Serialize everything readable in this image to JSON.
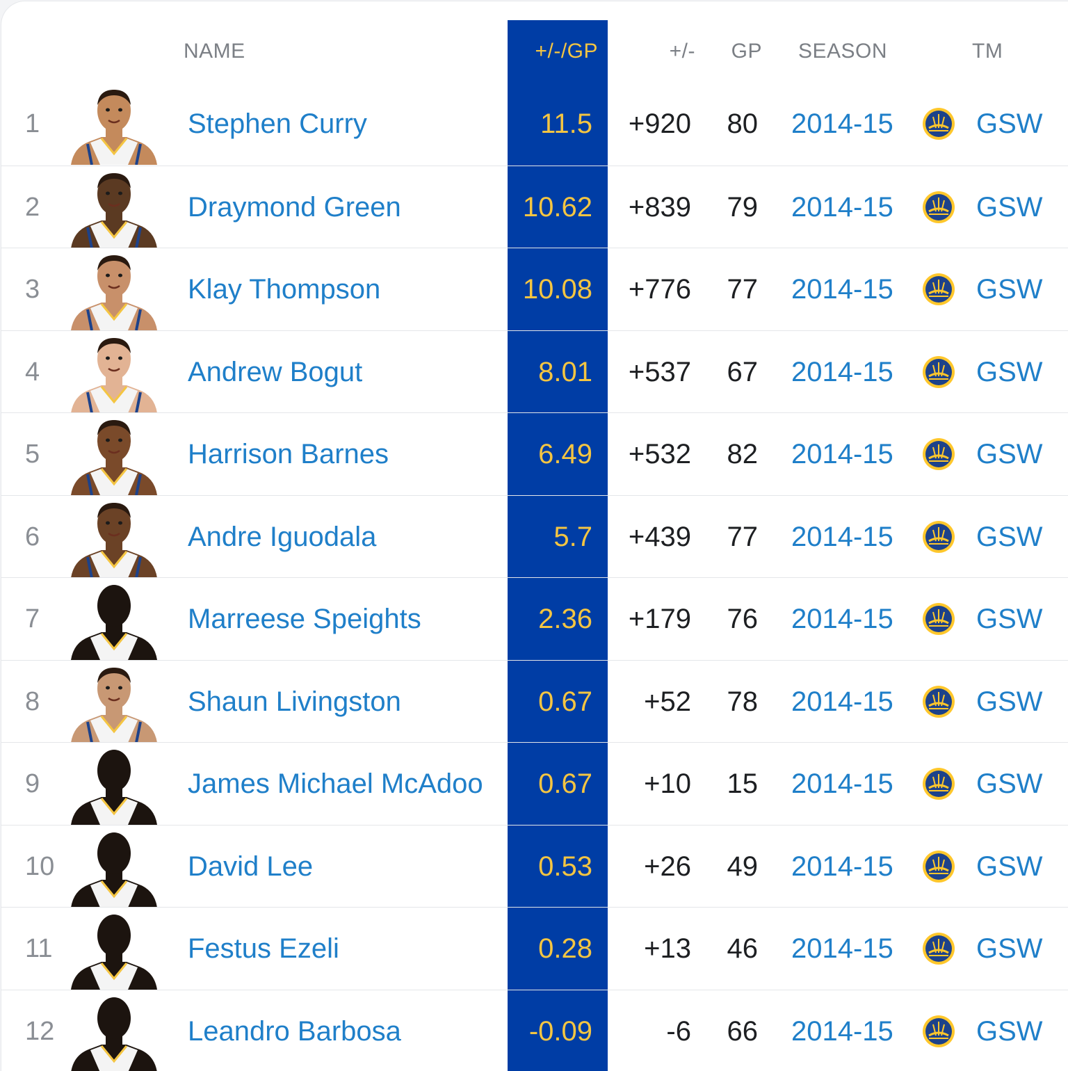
{
  "colors": {
    "stat_column_bg": "#003da5",
    "stat_text": "#f4c542",
    "link": "#1f7fc9",
    "header_text": "#7b7f85",
    "row_divider": "#e4e6e9"
  },
  "table": {
    "columns": {
      "name": "NAME",
      "plus_minus_per_gp": "+/-/GP",
      "plus_minus": "+/-",
      "gp": "GP",
      "season": "SEASON",
      "team": "TM"
    },
    "rows": [
      {
        "rank": "1",
        "name": "Stephen Curry",
        "avatar": "player-headshot",
        "pm_gp": "11.5",
        "pm": "+920",
        "gp": "80",
        "season": "2014-15",
        "team": "GSW",
        "team_logo": "warriors-logo-icon"
      },
      {
        "rank": "2",
        "name": "Draymond Green",
        "avatar": "player-headshot",
        "pm_gp": "10.62",
        "pm": "+839",
        "gp": "79",
        "season": "2014-15",
        "team": "GSW",
        "team_logo": "warriors-logo-icon"
      },
      {
        "rank": "3",
        "name": "Klay Thompson",
        "avatar": "player-headshot",
        "pm_gp": "10.08",
        "pm": "+776",
        "gp": "77",
        "season": "2014-15",
        "team": "GSW",
        "team_logo": "warriors-logo-icon"
      },
      {
        "rank": "4",
        "name": "Andrew Bogut",
        "avatar": "player-headshot",
        "pm_gp": "8.01",
        "pm": "+537",
        "gp": "67",
        "season": "2014-15",
        "team": "GSW",
        "team_logo": "warriors-logo-icon"
      },
      {
        "rank": "5",
        "name": "Harrison Barnes",
        "avatar": "player-headshot",
        "pm_gp": "6.49",
        "pm": "+532",
        "gp": "82",
        "season": "2014-15",
        "team": "GSW",
        "team_logo": "warriors-logo-icon"
      },
      {
        "rank": "6",
        "name": "Andre Iguodala",
        "avatar": "player-headshot",
        "pm_gp": "5.7",
        "pm": "+439",
        "gp": "77",
        "season": "2014-15",
        "team": "GSW",
        "team_logo": "warriors-logo-icon"
      },
      {
        "rank": "7",
        "name": "Marreese Speights",
        "avatar": "player-silhouette",
        "pm_gp": "2.36",
        "pm": "+179",
        "gp": "76",
        "season": "2014-15",
        "team": "GSW",
        "team_logo": "warriors-logo-icon"
      },
      {
        "rank": "8",
        "name": "Shaun Livingston",
        "avatar": "player-headshot",
        "pm_gp": "0.67",
        "pm": "+52",
        "gp": "78",
        "season": "2014-15",
        "team": "GSW",
        "team_logo": "warriors-logo-icon"
      },
      {
        "rank": "9",
        "name": "James Michael McAdoo",
        "avatar": "player-silhouette",
        "pm_gp": "0.67",
        "pm": "+10",
        "gp": "15",
        "season": "2014-15",
        "team": "GSW",
        "team_logo": "warriors-logo-icon"
      },
      {
        "rank": "10",
        "name": "David Lee",
        "avatar": "player-silhouette",
        "pm_gp": "0.53",
        "pm": "+26",
        "gp": "49",
        "season": "2014-15",
        "team": "GSW",
        "team_logo": "warriors-logo-icon"
      },
      {
        "rank": "11",
        "name": "Festus Ezeli",
        "avatar": "player-silhouette",
        "pm_gp": "0.28",
        "pm": "+13",
        "gp": "46",
        "season": "2014-15",
        "team": "GSW",
        "team_logo": "warriors-logo-icon"
      },
      {
        "rank": "12",
        "name": "Leandro Barbosa",
        "avatar": "player-silhouette",
        "pm_gp": "-0.09",
        "pm": "-6",
        "gp": "66",
        "season": "2014-15",
        "team": "GSW",
        "team_logo": "warriors-logo-icon"
      }
    ]
  }
}
